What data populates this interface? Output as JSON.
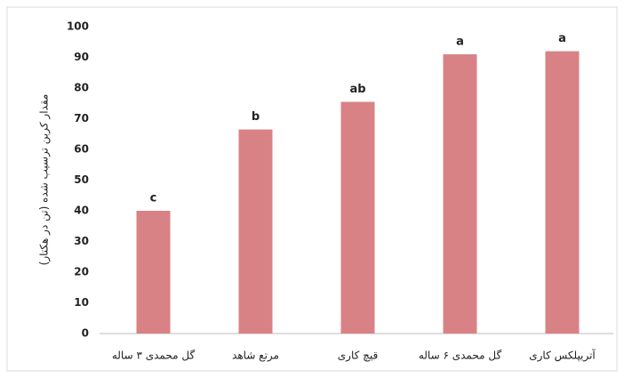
{
  "chart_data": {
    "type": "bar",
    "y_label": "مقدار کربن ترسیب شده (تن در هکتار)",
    "categories": [
      "گل محمدی ۳ ساله",
      "مرتع شاهد",
      "قیچ کاری",
      "گل محمدی ۶ ساله",
      "آتریپلکس کاری"
    ],
    "values": [
      40,
      66.5,
      75.5,
      91,
      92
    ],
    "annotations": [
      "c",
      "b",
      "ab",
      "a",
      "a"
    ],
    "color": "#d98286",
    "ylim": [
      0,
      100
    ],
    "yticks": [
      0,
      10,
      20,
      30,
      40,
      50,
      60,
      70,
      80,
      90,
      100
    ],
    "grid": false
  }
}
